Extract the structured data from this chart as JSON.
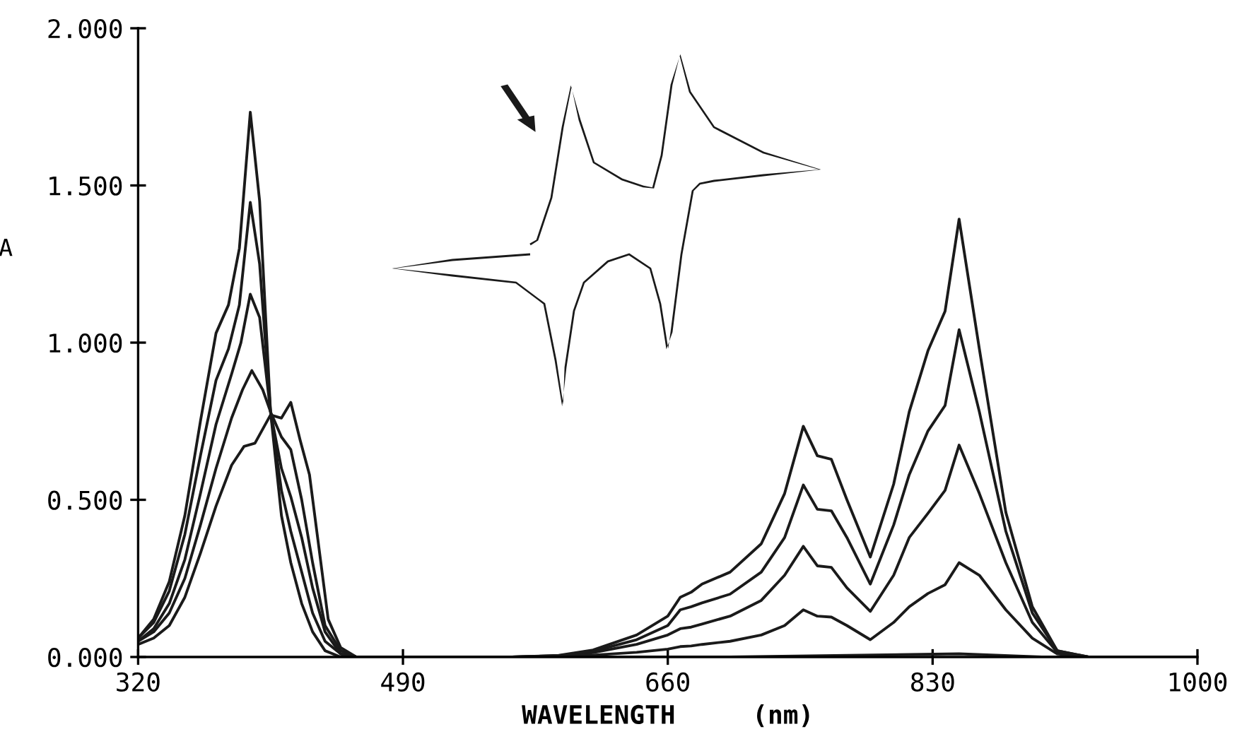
{
  "chart_data": {
    "type": "line",
    "xlabel": "WAVELENGTH     (nm)",
    "ylabel": "A",
    "xlim": [
      320,
      1000
    ],
    "ylim": [
      0,
      2
    ],
    "xticks": [
      320,
      490,
      660,
      830,
      1000
    ],
    "yticks": [
      {
        "value": 0,
        "label": "0.000"
      },
      {
        "value": 0.5,
        "label": "0.500"
      },
      {
        "value": 1,
        "label": "1.000"
      },
      {
        "value": 1.5,
        "label": "1.500"
      },
      {
        "value": 2,
        "label": "2.000"
      }
    ],
    "grid": false,
    "legend": false,
    "marker": "none",
    "line_style": "solid",
    "series": [
      {
        "color": "#1a1a1a",
        "x": [
          320,
          330,
          340,
          350,
          360,
          370,
          378,
          385,
          392,
          398,
          405,
          412,
          418,
          425,
          432,
          440,
          450,
          470,
          560,
          700,
          847,
          900,
          1000
        ],
        "values": [
          0.06,
          0.12,
          0.24,
          0.45,
          0.75,
          1.03,
          1.12,
          1.3,
          1.733,
          1.45,
          0.78,
          0.45,
          0.3,
          0.17,
          0.08,
          0.02,
          0,
          0,
          0,
          0,
          0.01,
          0,
          0
        ]
      },
      {
        "color": "#1a1a1a",
        "x": [
          320,
          330,
          340,
          350,
          360,
          370,
          378,
          385,
          392,
          398,
          405,
          412,
          418,
          425,
          432,
          440,
          450,
          460,
          560,
          590,
          612,
          640,
          660,
          668,
          675,
          682,
          700,
          720,
          735,
          747,
          756,
          765,
          775,
          790,
          805,
          815,
          827,
          838,
          847,
          860,
          877,
          894,
          910,
          930,
          1000
        ],
        "values": [
          0.06,
          0.11,
          0.21,
          0.39,
          0.64,
          0.88,
          0.98,
          1.12,
          1.446,
          1.25,
          0.78,
          0.53,
          0.4,
          0.27,
          0.14,
          0.05,
          0.01,
          0,
          0,
          0.002,
          0.006,
          0.015,
          0.025,
          0.033,
          0.035,
          0.04,
          0.05,
          0.07,
          0.1,
          0.15,
          0.13,
          0.127,
          0.1,
          0.055,
          0.11,
          0.16,
          0.202,
          0.23,
          0.3,
          0.26,
          0.15,
          0.06,
          0.01,
          0,
          0
        ]
      },
      {
        "color": "#1a1a1a",
        "x": [
          320,
          330,
          340,
          350,
          360,
          370,
          380,
          386,
          392,
          398,
          405,
          412,
          418,
          425,
          432,
          440,
          450,
          460,
          560,
          590,
          612,
          640,
          660,
          668,
          675,
          682,
          700,
          720,
          735,
          747,
          756,
          765,
          775,
          790,
          805,
          815,
          827,
          838,
          847,
          860,
          877,
          894,
          910,
          930,
          1000
        ],
        "values": [
          0.05,
          0.09,
          0.17,
          0.31,
          0.52,
          0.74,
          0.9,
          1.0,
          1.154,
          1.08,
          0.78,
          0.6,
          0.51,
          0.38,
          0.22,
          0.08,
          0.01,
          0,
          0,
          0.003,
          0.014,
          0.04,
          0.07,
          0.09,
          0.095,
          0.105,
          0.13,
          0.18,
          0.26,
          0.352,
          0.29,
          0.285,
          0.22,
          0.145,
          0.26,
          0.38,
          0.457,
          0.53,
          0.674,
          0.52,
          0.3,
          0.11,
          0.015,
          0,
          0
        ]
      },
      {
        "color": "#1a1a1a",
        "x": [
          320,
          330,
          340,
          350,
          360,
          370,
          380,
          387,
          393,
          400,
          405,
          412,
          418,
          425,
          432,
          440,
          450,
          460,
          560,
          590,
          612,
          640,
          660,
          668,
          675,
          682,
          700,
          720,
          735,
          747,
          756,
          765,
          775,
          790,
          805,
          815,
          827,
          838,
          847,
          860,
          877,
          894,
          910,
          930,
          1000
        ],
        "values": [
          0.05,
          0.08,
          0.14,
          0.25,
          0.42,
          0.6,
          0.76,
          0.85,
          0.911,
          0.85,
          0.78,
          0.7,
          0.66,
          0.5,
          0.3,
          0.1,
          0.02,
          0,
          0,
          0.004,
          0.018,
          0.055,
          0.1,
          0.15,
          0.16,
          0.172,
          0.2,
          0.27,
          0.38,
          0.547,
          0.47,
          0.465,
          0.38,
          0.232,
          0.42,
          0.58,
          0.719,
          0.8,
          1.041,
          0.78,
          0.4,
          0.14,
          0.02,
          0,
          0
        ]
      },
      {
        "color": "#1a1a1a",
        "x": [
          320,
          330,
          340,
          350,
          360,
          370,
          380,
          388,
          395,
          405,
          412,
          418,
          424,
          430,
          436,
          442,
          450,
          460,
          560,
          590,
          612,
          640,
          660,
          668,
          675,
          682,
          700,
          720,
          735,
          747,
          756,
          765,
          775,
          790,
          805,
          815,
          827,
          838,
          847,
          860,
          877,
          894,
          910,
          930,
          1000
        ],
        "values": [
          0.04,
          0.06,
          0.1,
          0.19,
          0.33,
          0.48,
          0.61,
          0.67,
          0.68,
          0.77,
          0.76,
          0.81,
          0.69,
          0.58,
          0.35,
          0.12,
          0.03,
          0,
          0,
          0.005,
          0.022,
          0.07,
          0.13,
          0.19,
          0.206,
          0.232,
          0.27,
          0.36,
          0.52,
          0.734,
          0.64,
          0.629,
          0.5,
          0.318,
          0.55,
          0.78,
          0.974,
          1.1,
          1.393,
          0.98,
          0.46,
          0.16,
          0.02,
          0,
          0
        ]
      }
    ]
  }
}
